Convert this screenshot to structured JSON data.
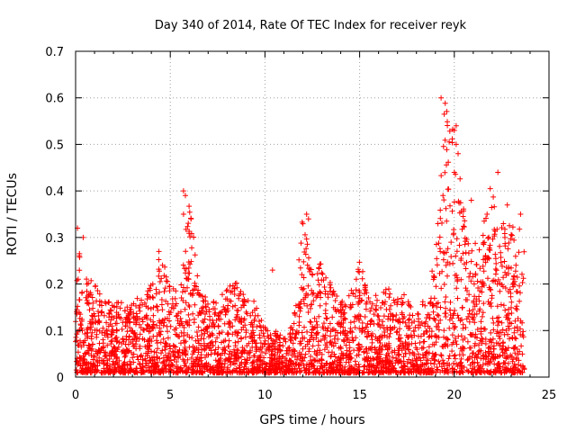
{
  "chart_data": {
    "type": "scatter",
    "title": "Day 340 of 2014, Rate Of TEC Index for receiver reyk",
    "xlabel": "GPS time / hours",
    "ylabel": "ROTI / TECUs",
    "xlim": [
      0,
      25
    ],
    "ylim": [
      0,
      0.7
    ],
    "xticks": [
      "0",
      "5",
      "10",
      "15",
      "20",
      "25"
    ],
    "yticks": [
      "0",
      "0.1",
      "0.2",
      "0.3",
      "0.4",
      "0.5",
      "0.6",
      "0.7"
    ],
    "grid": true,
    "marker": "+",
    "color": "#ff0000",
    "series": [
      {
        "name": "ROTI",
        "x_range": [
          0,
          23.7
        ],
        "envelope": {
          "x": [
            0,
            0.3,
            0.5,
            1,
            1.5,
            2,
            3,
            4,
            4.5,
            5,
            5.5,
            6,
            6.5,
            7,
            7.5,
            8,
            8.5,
            9,
            9.5,
            10,
            10.5,
            11,
            11.5,
            12,
            12.5,
            13,
            13.5,
            14,
            14.5,
            15,
            15.5,
            16,
            16.5,
            17,
            17.5,
            18,
            18.5,
            19,
            19.5,
            20,
            20.5,
            21,
            21.5,
            22,
            22.5,
            23,
            23.5,
            23.7
          ],
          "y": [
            0.3,
            0.29,
            0.22,
            0.2,
            0.17,
            0.17,
            0.16,
            0.2,
            0.27,
            0.2,
            0.18,
            0.4,
            0.19,
            0.17,
            0.18,
            0.19,
            0.21,
            0.18,
            0.16,
            0.11,
            0.1,
            0.09,
            0.12,
            0.35,
            0.22,
            0.25,
            0.2,
            0.17,
            0.18,
            0.25,
            0.19,
            0.17,
            0.2,
            0.17,
            0.18,
            0.13,
            0.19,
            0.25,
            0.6,
            0.54,
            0.36,
            0.28,
            0.32,
            0.44,
            0.34,
            0.33,
            0.34,
            0.3
          ]
        },
        "baseline": 0.03,
        "notable_points": [
          {
            "x": 19.3,
            "y": 0.6
          },
          {
            "x": 20.1,
            "y": 0.54
          },
          {
            "x": 20.0,
            "y": 0.53
          },
          {
            "x": 20.1,
            "y": 0.5
          },
          {
            "x": 20.2,
            "y": 0.48
          },
          {
            "x": 20.0,
            "y": 0.44
          },
          {
            "x": 22.3,
            "y": 0.44
          },
          {
            "x": 5.7,
            "y": 0.4
          },
          {
            "x": 5.8,
            "y": 0.39
          },
          {
            "x": 5.7,
            "y": 0.35
          },
          {
            "x": 20.9,
            "y": 0.38
          },
          {
            "x": 19.4,
            "y": 0.39
          },
          {
            "x": 12.2,
            "y": 0.35
          },
          {
            "x": 12.3,
            "y": 0.34
          },
          {
            "x": 10.4,
            "y": 0.23
          },
          {
            "x": 0.1,
            "y": 0.32
          },
          {
            "x": 0.4,
            "y": 0.3
          },
          {
            "x": 4.4,
            "y": 0.27
          },
          {
            "x": 22.8,
            "y": 0.37
          },
          {
            "x": 23.5,
            "y": 0.35
          }
        ]
      }
    ]
  }
}
